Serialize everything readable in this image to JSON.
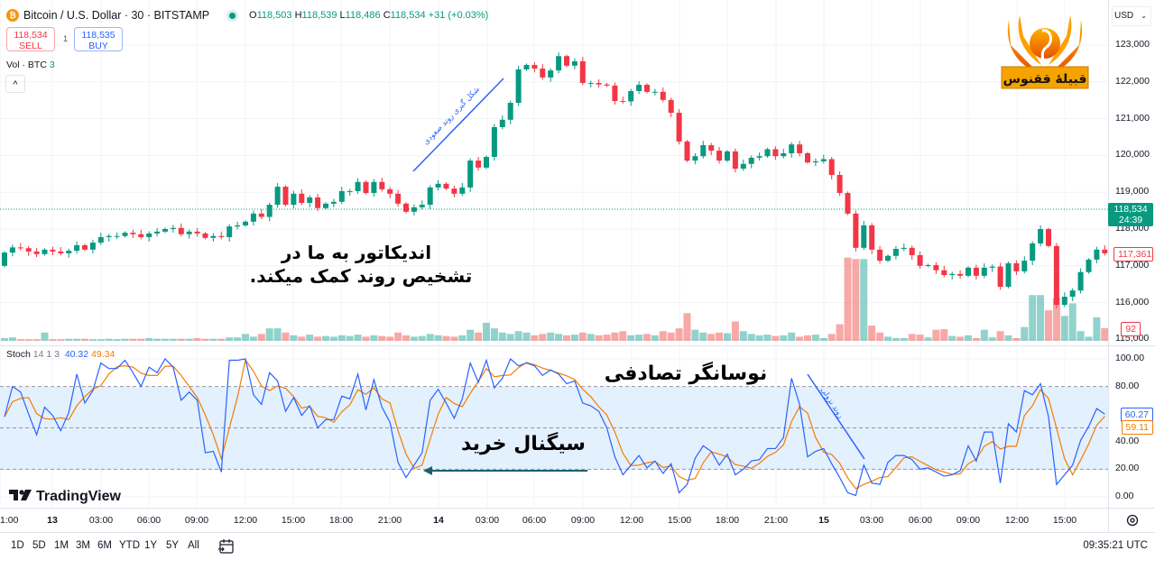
{
  "header": {
    "symbol_title": "Bitcoin / U.S. Dollar · 30 · BITSTAMP",
    "ohlc": {
      "o_label": "O",
      "o": "118,503",
      "h_label": "H",
      "h": "118,539",
      "l_label": "L",
      "l": "118,486",
      "c_label": "C",
      "c": "118,534",
      "change": "+31 (+0.03%)"
    },
    "sell_price": "118,534",
    "sell_label": "SELL",
    "spread": "1",
    "buy_price": "118,535",
    "buy_label": "BUY",
    "volume_legend": "Vol · BTC",
    "volume_value": "3",
    "collapse_icon": "^"
  },
  "currency_select": "USD",
  "logo_text": "قبیلهٔ ققنوس",
  "price_axis": {
    "ticks": [
      "123,000",
      "122,000",
      "121,000",
      "120,000",
      "119,000",
      "118,000",
      "117,000",
      "116,000",
      "115,000"
    ],
    "current_price": "118,534",
    "countdown": "24:39",
    "last_bar_close": "117,361",
    "last_volume": "92"
  },
  "stoch": {
    "legend": "Stoch",
    "params": "14 1 3",
    "k_value": "40.32",
    "d_value": "49.34",
    "ticks": [
      "100.00",
      "80.00",
      "60.00",
      "40.00",
      "20.00",
      "0.00"
    ],
    "k_last": "60.27",
    "d_last": "59.11"
  },
  "time_axis": [
    "1:00",
    "13",
    "03:00",
    "06:00",
    "09:00",
    "12:00",
    "15:00",
    "18:00",
    "21:00",
    "14",
    "03:00",
    "06:00",
    "09:00",
    "12:00",
    "15:00",
    "18:00",
    "21:00",
    "15",
    "03:00",
    "06:00",
    "09:00",
    "12:00",
    "15:00"
  ],
  "annotations": {
    "indicator_line1": "اندیکاتور به ما در",
    "indicator_line2": "تشخیص روند کمک میکند.",
    "uptrend": "شکل گیری روند صعودی",
    "downtrend": "روند نزولی",
    "stochastic": "نوسانگر تصادفی",
    "buy_signal": "سیگنال خرید"
  },
  "watermark": "TradingView",
  "toolbar": {
    "ranges": [
      "1D",
      "5D",
      "1M",
      "3M",
      "6M",
      "YTD",
      "1Y",
      "5Y",
      "All"
    ],
    "clock": "09:35:21 UTC"
  },
  "colors": {
    "up": "#089981",
    "down": "#f23645",
    "k_line": "#2962ff",
    "d_line": "#f57c00",
    "band": "#e3f0fd",
    "accent": "#2962ff"
  },
  "chart_data": {
    "type": "candlestick",
    "interval": "30",
    "first_open": 117000,
    "ylim": [
      115000,
      123300
    ],
    "close": [
      117360,
      117500,
      117480,
      117390,
      117320,
      117440,
      117390,
      117340,
      117410,
      117560,
      117440,
      117630,
      117780,
      117810,
      117810,
      117900,
      117860,
      117780,
      117880,
      117930,
      118000,
      118030,
      117860,
      117930,
      117880,
      117760,
      117810,
      117780,
      118070,
      118100,
      118200,
      118420,
      118330,
      118660,
      119150,
      118660,
      118960,
      118710,
      118860,
      118570,
      118690,
      118740,
      119030,
      119030,
      119280,
      118980,
      119280,
      119080,
      118960,
      118690,
      118470,
      118590,
      118660,
      119130,
      119230,
      119100,
      118960,
      119130,
      119860,
      119670,
      119960,
      120770,
      120970,
      121430,
      122340,
      122460,
      122360,
      122120,
      122310,
      122700,
      122440,
      122560,
      121970,
      121970,
      121930,
      121900,
      121480,
      121470,
      121750,
      121920,
      121730,
      121730,
      121510,
      121160,
      120380,
      119860,
      119980,
      120280,
      120130,
      119860,
      120110,
      119640,
      119770,
      119940,
      119980,
      120170,
      119980,
      120060,
      120300,
      120060,
      119810,
      119840,
      119900,
      119470,
      118980,
      118420,
      117490,
      118100,
      117440,
      117140,
      117270,
      117460,
      117490,
      117290,
      117000,
      117020,
      116880,
      116750,
      116780,
      116730,
      116950,
      116730,
      116950,
      116980,
      116430,
      117070,
      116850,
      117140,
      117610,
      118000,
      117540,
      115940,
      116160,
      116330,
      116830,
      117170,
      117440,
      117340
    ],
    "volume": [
      20,
      25,
      12,
      12,
      12,
      60,
      12,
      12,
      15,
      15,
      15,
      12,
      12,
      15,
      12,
      15,
      15,
      15,
      20,
      15,
      15,
      15,
      15,
      15,
      20,
      15,
      15,
      15,
      25,
      25,
      50,
      30,
      50,
      90,
      90,
      60,
      40,
      30,
      45,
      30,
      35,
      30,
      40,
      35,
      45,
      30,
      40,
      35,
      30,
      60,
      40,
      30,
      35,
      50,
      40,
      35,
      30,
      40,
      80,
      60,
      130,
      90,
      60,
      50,
      70,
      60,
      40,
      50,
      60,
      50,
      40,
      45,
      60,
      50,
      40,
      45,
      60,
      70,
      40,
      45,
      50,
      40,
      70,
      60,
      90,
      200,
      80,
      60,
      50,
      60,
      55,
      140,
      70,
      50,
      40,
      45,
      35,
      40,
      60,
      30,
      40,
      45,
      20,
      50,
      120,
      600,
      590,
      590,
      110,
      60,
      30,
      20,
      20,
      50,
      45,
      25,
      80,
      85,
      35,
      30,
      40,
      20,
      80,
      25,
      70,
      40,
      20,
      100,
      330,
      330,
      220,
      310,
      180,
      270,
      70,
      30,
      170,
      92
    ],
    "stoch_k": [
      58,
      80,
      76,
      60,
      45,
      65,
      59,
      48,
      61,
      89,
      68,
      77,
      97,
      93,
      93,
      99,
      90,
      80,
      94,
      90,
      100,
      94,
      70,
      76,
      70,
      32,
      33,
      18,
      99,
      99,
      100,
      74,
      67,
      90,
      84,
      62,
      72,
      59,
      66,
      50,
      56,
      56,
      73,
      71,
      89,
      63,
      85,
      65,
      54,
      25,
      14,
      23,
      32,
      70,
      78,
      68,
      57,
      71,
      97,
      83,
      99,
      79,
      86,
      100,
      95,
      97,
      95,
      88,
      92,
      89,
      82,
      84,
      68,
      66,
      62,
      50,
      29,
      16,
      23,
      30,
      21,
      26,
      17,
      24,
      3,
      9,
      28,
      37,
      33,
      23,
      31,
      16,
      20,
      26,
      27,
      35,
      35,
      43,
      86,
      67,
      29,
      33,
      35,
      24,
      14,
      3,
      1,
      23,
      10,
      9,
      25,
      30,
      30,
      27,
      20,
      21,
      18,
      15,
      16,
      19,
      37,
      26,
      47,
      47,
      10,
      53,
      47,
      77,
      74,
      82,
      58,
      9,
      16,
      23,
      41,
      51,
      64,
      60
    ],
    "stoch_levels": [
      80,
      50,
      20
    ],
    "stoch_ylim": [
      0,
      100
    ]
  }
}
